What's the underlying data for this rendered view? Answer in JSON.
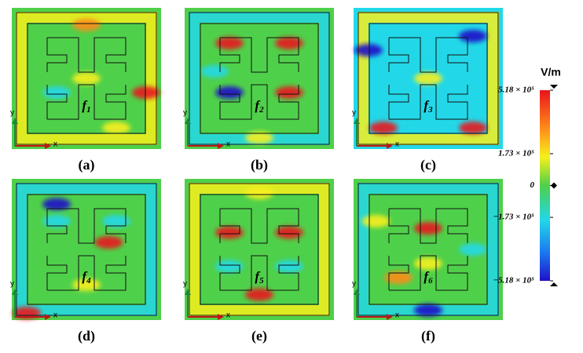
{
  "figure": {
    "axes": {
      "x": "x",
      "y": "y"
    },
    "panels": [
      {
        "label": "(a)",
        "freq": {
          "symbol": "f",
          "index": "1"
        }
      },
      {
        "label": "(b)",
        "freq": {
          "symbol": "f",
          "index": "2"
        }
      },
      {
        "label": "(c)",
        "freq": {
          "symbol": "f",
          "index": "3"
        }
      },
      {
        "label": "(d)",
        "freq": {
          "symbol": "f",
          "index": "4"
        }
      },
      {
        "label": "(e)",
        "freq": {
          "symbol": "f",
          "index": "5"
        }
      },
      {
        "label": "(f)",
        "freq": {
          "symbol": "f",
          "index": "6"
        }
      }
    ],
    "colorbar": {
      "unit": "V/m",
      "lim": [
        -518000,
        518000
      ],
      "ticks": [
        {
          "value": 518000,
          "label": "5.18 × 10⁵"
        },
        {
          "value": 173000,
          "label": "1.73 × 10⁵"
        },
        {
          "value": 0,
          "label": "0"
        },
        {
          "value": -173000,
          "label": "−1.73 × 10⁵"
        },
        {
          "value": -518000,
          "label": "−5.18 × 10⁵"
        }
      ]
    }
  }
}
